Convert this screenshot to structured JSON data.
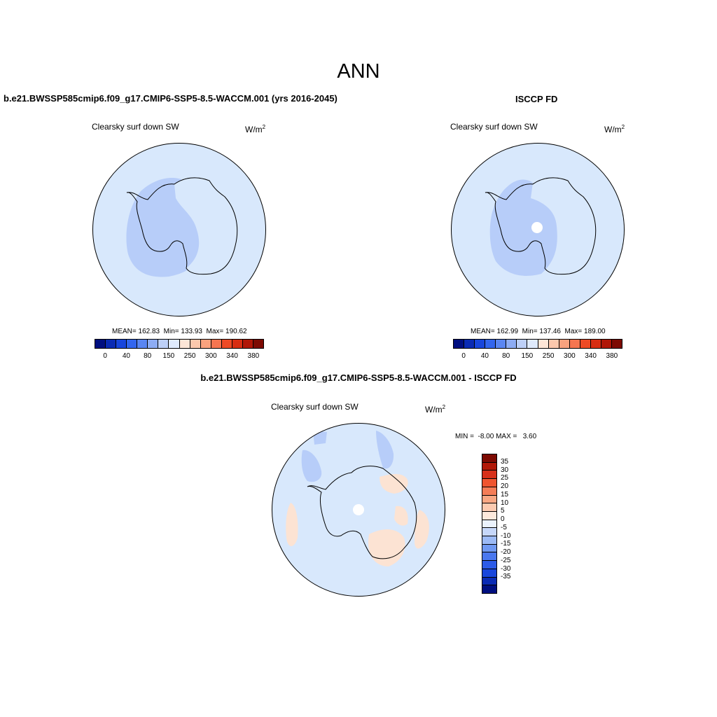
{
  "main_title": "ANN",
  "panels": [
    {
      "title": "b.e21.BWSSP585cmip6.f09_g17.CMIP6-SSP5-8.5-WACCM.001 (yrs 2016-2045)",
      "variable": "Clearsky surf down SW",
      "units_base": "W/m",
      "units_exp": "2",
      "stats": "MEAN= 162.83  Min= 133.93  Max= 190.62"
    },
    {
      "title": "ISCCP FD",
      "variable": "Clearsky surf down SW",
      "units_base": "W/m",
      "units_exp": "2",
      "stats": "MEAN= 162.99  Min= 137.46  Max= 189.00"
    },
    {
      "title": "b.e21.BWSSP585cmip6.f09_g17.CMIP6-SSP5-8.5-WACCM.001 - ISCCP FD",
      "variable": "Clearsky surf down SW",
      "units_base": "W/m",
      "units_exp": "2",
      "stats": "MIN =  -8.00 MAX =   3.60"
    }
  ],
  "abs_colorbar": {
    "colors": [
      "#000f80",
      "#0a2bb4",
      "#1846dc",
      "#3366ee",
      "#5a86f2",
      "#8dacf4",
      "#bdd0f8",
      "#dfeafc",
      "#fde6d7",
      "#fcc8ad",
      "#f9a27e",
      "#f57550",
      "#ee4a25",
      "#d72d12",
      "#b01607",
      "#7d0a02"
    ],
    "tick_labels": [
      "0",
      "40",
      "80",
      "150",
      "250",
      "300",
      "340",
      "380"
    ]
  },
  "diff_colorbar": {
    "colors": [
      "#000f80",
      "#0a2bb4",
      "#1846dc",
      "#2c5be8",
      "#4a78ef",
      "#7099f2",
      "#9cbaf5",
      "#c6d7f9",
      "#ebf2fc",
      "#fde9dc",
      "#fccab0",
      "#f9a783",
      "#f57d57",
      "#ef5530",
      "#d7301a",
      "#b11808",
      "#7d0a02"
    ],
    "tick_labels": [
      "35",
      "30",
      "25",
      "20",
      "15",
      "10",
      "5",
      "0",
      "-5",
      "-10",
      "-15",
      "-20",
      "-25",
      "-30",
      "-35"
    ]
  }
}
